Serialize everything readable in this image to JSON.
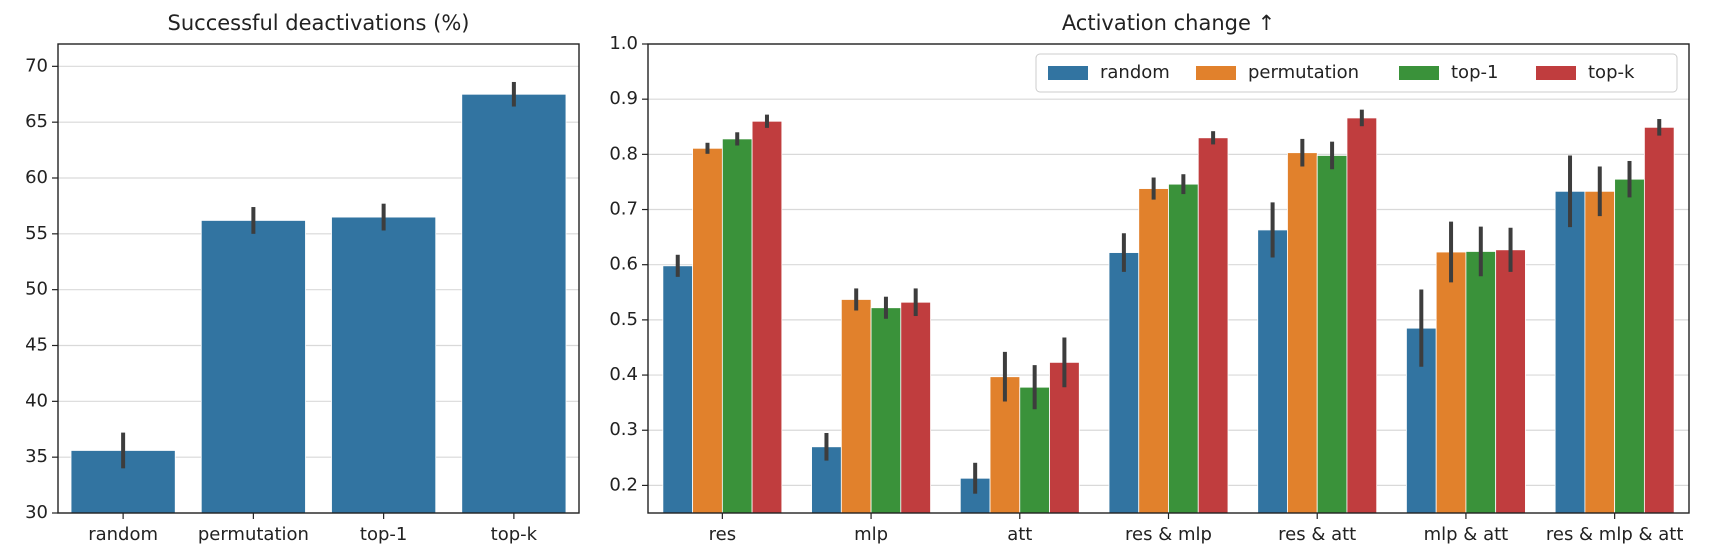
{
  "chart_data": [
    {
      "type": "bar",
      "title": "Successful deactivations (%)",
      "categories": [
        "random",
        "permutation",
        "top-1",
        "top-k"
      ],
      "values": [
        35.6,
        56.2,
        56.5,
        67.5
      ],
      "errors": [
        1.6,
        1.2,
        1.2,
        1.1
      ],
      "color": "#3274a1",
      "ylim": [
        30,
        72
      ],
      "yticks": [
        30,
        35,
        40,
        45,
        50,
        55,
        60,
        65,
        70
      ],
      "grid": true
    },
    {
      "type": "bar",
      "title": "Activation change ↑",
      "categories": [
        "res",
        "mlp",
        "att",
        "res & mlp",
        "res & att",
        "mlp & att",
        "res & mlp & att"
      ],
      "series": [
        {
          "name": "random",
          "color": "#3274a1",
          "values": [
            0.598,
            0.27,
            0.213,
            0.622,
            0.663,
            0.485,
            0.733
          ],
          "errors": [
            0.02,
            0.025,
            0.028,
            0.035,
            0.05,
            0.07,
            0.065
          ]
        },
        {
          "name": "permutation",
          "color": "#e1812c",
          "values": [
            0.811,
            0.537,
            0.397,
            0.738,
            0.803,
            0.623,
            0.733
          ],
          "errors": [
            0.01,
            0.02,
            0.045,
            0.02,
            0.025,
            0.055,
            0.045
          ]
        },
        {
          "name": "top-1",
          "color": "#3a923a",
          "values": [
            0.828,
            0.522,
            0.378,
            0.746,
            0.798,
            0.624,
            0.755
          ],
          "errors": [
            0.012,
            0.02,
            0.04,
            0.018,
            0.025,
            0.045,
            0.033
          ]
        },
        {
          "name": "top-k",
          "color": "#c03d3e",
          "values": [
            0.86,
            0.532,
            0.423,
            0.83,
            0.866,
            0.627,
            0.849
          ],
          "errors": [
            0.012,
            0.025,
            0.045,
            0.012,
            0.015,
            0.04,
            0.015
          ]
        }
      ],
      "ylim": [
        0.15,
        1.0
      ],
      "yticks": [
        0.2,
        0.3,
        0.4,
        0.5,
        0.6,
        0.7,
        0.8,
        0.9,
        {
          "value": 1,
          "label": "1.0"
        }
      ],
      "grid": true,
      "legend": "upper right"
    }
  ]
}
